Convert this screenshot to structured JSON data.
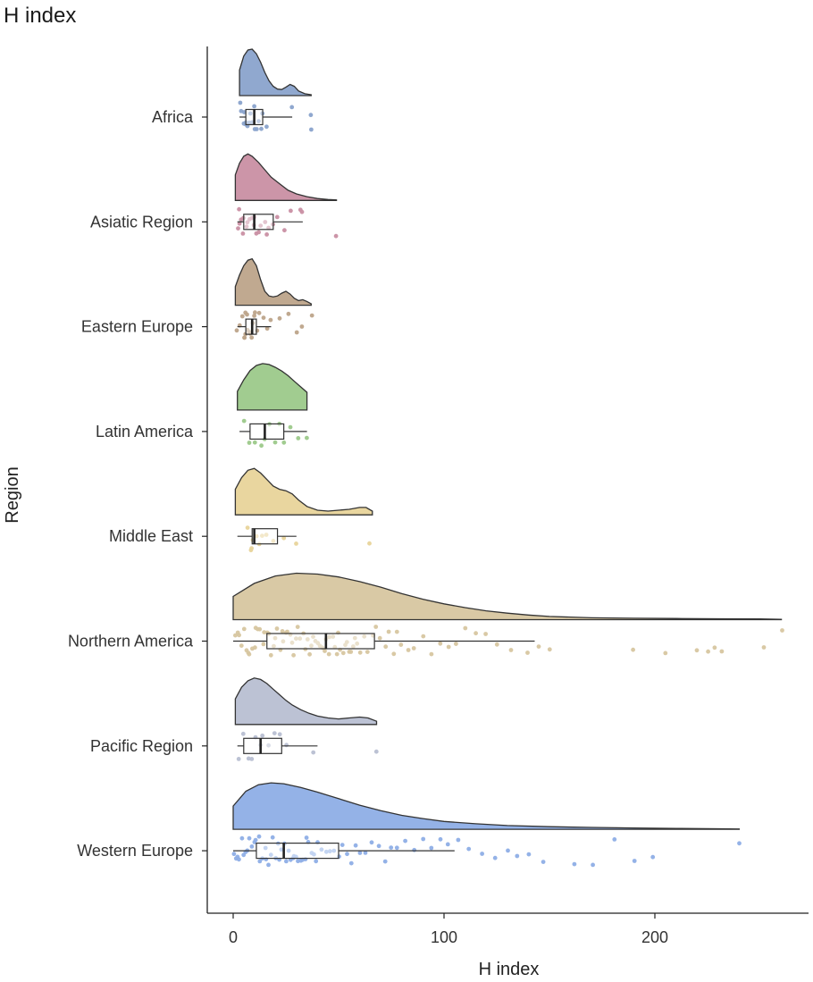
{
  "chart_data": {
    "type": "raincloud",
    "title": "H index",
    "xlabel": "H index",
    "ylabel": "Region",
    "xlim": [
      -12,
      273
    ],
    "xticks": [
      0,
      100,
      200
    ],
    "grid": false,
    "legend": "none",
    "series": [
      {
        "name": "Africa",
        "color": "#8aa3cc",
        "box": {
          "min": 3,
          "q1": 6,
          "median": 10,
          "q3": 14,
          "max": 28
        },
        "density_max": 37,
        "density": [
          [
            3,
            0.55
          ],
          [
            5,
            0.85
          ],
          [
            7,
            0.98
          ],
          [
            9,
            1.0
          ],
          [
            11,
            0.9
          ],
          [
            13,
            0.72
          ],
          [
            15,
            0.5
          ],
          [
            17,
            0.32
          ],
          [
            19,
            0.2
          ],
          [
            21,
            0.14
          ],
          [
            23,
            0.13
          ],
          [
            25,
            0.18
          ],
          [
            27,
            0.24
          ],
          [
            29,
            0.2
          ],
          [
            31,
            0.1
          ],
          [
            34,
            0.04
          ],
          [
            37,
            0.02
          ]
        ],
        "points": [
          3,
          4,
          5,
          5,
          6,
          6,
          7,
          8,
          8,
          9,
          10,
          10,
          11,
          12,
          13,
          14,
          16,
          28,
          37,
          37
        ]
      },
      {
        "name": "Asiatic Region",
        "color": "#c98fa3",
        "box": {
          "min": 2,
          "q1": 5,
          "median": 10,
          "q3": 19,
          "max": 33
        },
        "density_max": 49,
        "density": [
          [
            1,
            0.55
          ],
          [
            3,
            0.8
          ],
          [
            5,
            0.95
          ],
          [
            7,
            1.0
          ],
          [
            9,
            0.95
          ],
          [
            12,
            0.82
          ],
          [
            15,
            0.66
          ],
          [
            18,
            0.5
          ],
          [
            22,
            0.36
          ],
          [
            26,
            0.22
          ],
          [
            30,
            0.14
          ],
          [
            35,
            0.08
          ],
          [
            40,
            0.04
          ],
          [
            45,
            0.02
          ],
          [
            49,
            0.01
          ]
        ],
        "points": [
          2,
          3,
          3,
          4,
          5,
          5,
          6,
          7,
          8,
          9,
          10,
          10,
          11,
          12,
          13,
          15,
          16,
          17,
          19,
          21,
          24,
          27,
          32,
          33,
          49
        ]
      },
      {
        "name": "Eastern Europe",
        "color": "#bda48a",
        "box": {
          "min": 2,
          "q1": 6,
          "median": 9,
          "q3": 11,
          "max": 18
        },
        "density_max": 37,
        "density": [
          [
            1,
            0.4
          ],
          [
            3,
            0.65
          ],
          [
            5,
            0.85
          ],
          [
            7,
            0.97
          ],
          [
            9,
            1.0
          ],
          [
            11,
            0.85
          ],
          [
            13,
            0.55
          ],
          [
            15,
            0.3
          ],
          [
            17,
            0.2
          ],
          [
            19,
            0.18
          ],
          [
            21,
            0.2
          ],
          [
            23,
            0.26
          ],
          [
            25,
            0.3
          ],
          [
            27,
            0.24
          ],
          [
            29,
            0.15
          ],
          [
            31,
            0.1
          ],
          [
            33,
            0.12
          ],
          [
            35,
            0.08
          ],
          [
            37,
            0.03
          ]
        ],
        "points": [
          2,
          3,
          4,
          5,
          5,
          6,
          6,
          7,
          7,
          8,
          8,
          9,
          9,
          10,
          10,
          11,
          12,
          14,
          16,
          18,
          22,
          26,
          30,
          33,
          37
        ]
      },
      {
        "name": "Latin America",
        "color": "#9cc98a",
        "box": {
          "min": 3,
          "q1": 8,
          "median": 15,
          "q3": 24,
          "max": 35
        },
        "density_max": 35,
        "density": [
          [
            2,
            0.4
          ],
          [
            5,
            0.65
          ],
          [
            8,
            0.85
          ],
          [
            11,
            0.96
          ],
          [
            14,
            1.0
          ],
          [
            17,
            0.98
          ],
          [
            20,
            0.92
          ],
          [
            23,
            0.84
          ],
          [
            26,
            0.74
          ],
          [
            29,
            0.62
          ],
          [
            32,
            0.5
          ],
          [
            35,
            0.38
          ]
        ],
        "points": [
          5,
          8,
          10,
          13,
          15,
          17,
          20,
          22,
          24,
          27,
          31,
          35
        ]
      },
      {
        "name": "Middle East",
        "color": "#e8d49a",
        "box": {
          "min": 2,
          "q1": 9,
          "median": 10,
          "q3": 21,
          "max": 30
        },
        "density_max": 66,
        "density": [
          [
            1,
            0.55
          ],
          [
            4,
            0.8
          ],
          [
            7,
            0.96
          ],
          [
            10,
            1.0
          ],
          [
            13,
            0.9
          ],
          [
            16,
            0.76
          ],
          [
            19,
            0.62
          ],
          [
            22,
            0.55
          ],
          [
            25,
            0.52
          ],
          [
            28,
            0.45
          ],
          [
            31,
            0.32
          ],
          [
            35,
            0.18
          ],
          [
            40,
            0.1
          ],
          [
            45,
            0.08
          ],
          [
            50,
            0.1
          ],
          [
            55,
            0.12
          ],
          [
            60,
            0.16
          ],
          [
            63,
            0.16
          ],
          [
            66,
            0.08
          ]
        ],
        "points": [
          7,
          8,
          9,
          9,
          10,
          11,
          12,
          14,
          16,
          19,
          24,
          30,
          65
        ]
      },
      {
        "name": "Northern America",
        "color": "#d7c6a0",
        "box": {
          "min": 0,
          "q1": 16,
          "median": 44,
          "q3": 67,
          "max": 143
        },
        "density_max": 260,
        "density": [
          [
            0,
            0.5
          ],
          [
            10,
            0.78
          ],
          [
            20,
            0.94
          ],
          [
            30,
            1.0
          ],
          [
            40,
            0.98
          ],
          [
            50,
            0.92
          ],
          [
            60,
            0.82
          ],
          [
            70,
            0.7
          ],
          [
            80,
            0.56
          ],
          [
            90,
            0.44
          ],
          [
            100,
            0.34
          ],
          [
            110,
            0.26
          ],
          [
            120,
            0.19
          ],
          [
            130,
            0.14
          ],
          [
            140,
            0.1
          ],
          [
            150,
            0.07
          ],
          [
            170,
            0.04
          ],
          [
            190,
            0.03
          ],
          [
            210,
            0.025
          ],
          [
            230,
            0.02
          ],
          [
            250,
            0.015
          ],
          [
            260,
            0.008
          ]
        ],
        "points": [
          1,
          2,
          3,
          4,
          5,
          6,
          7,
          8,
          9,
          10,
          11,
          12,
          13,
          14,
          15,
          16,
          17,
          18,
          19,
          20,
          21,
          22,
          23,
          24,
          25,
          26,
          27,
          28,
          29,
          30,
          31,
          32,
          33,
          34,
          35,
          36,
          37,
          38,
          39,
          40,
          41,
          42,
          43,
          44,
          45,
          46,
          47,
          48,
          49,
          50,
          51,
          52,
          53,
          54,
          55,
          56,
          57,
          58,
          59,
          60,
          62,
          64,
          66,
          68,
          70,
          72,
          74,
          76,
          78,
          80,
          83,
          86,
          90,
          94,
          98,
          102,
          106,
          110,
          115,
          120,
          125,
          132,
          140,
          145,
          150,
          190,
          205,
          220,
          225,
          228,
          232,
          252,
          260
        ]
      },
      {
        "name": "Pacific Region",
        "color": "#b8bfd2",
        "box": {
          "min": 2,
          "q1": 5,
          "median": 13,
          "q3": 23,
          "max": 40
        },
        "density_max": 68,
        "density": [
          [
            1,
            0.55
          ],
          [
            4,
            0.8
          ],
          [
            7,
            0.94
          ],
          [
            10,
            1.0
          ],
          [
            13,
            0.97
          ],
          [
            16,
            0.88
          ],
          [
            19,
            0.76
          ],
          [
            22,
            0.64
          ],
          [
            25,
            0.52
          ],
          [
            28,
            0.42
          ],
          [
            32,
            0.32
          ],
          [
            36,
            0.24
          ],
          [
            40,
            0.18
          ],
          [
            45,
            0.14
          ],
          [
            50,
            0.12
          ],
          [
            55,
            0.14
          ],
          [
            60,
            0.16
          ],
          [
            64,
            0.14
          ],
          [
            68,
            0.07
          ]
        ],
        "points": [
          3,
          5,
          7,
          9,
          11,
          13,
          14,
          17,
          20,
          22,
          25,
          38,
          68
        ]
      },
      {
        "name": "Western Europe",
        "color": "#8eaee6",
        "box": {
          "min": 0,
          "q1": 11,
          "median": 24,
          "q3": 50,
          "max": 105
        },
        "density_max": 240,
        "density": [
          [
            0,
            0.5
          ],
          [
            6,
            0.82
          ],
          [
            12,
            0.96
          ],
          [
            18,
            1.0
          ],
          [
            24,
            0.98
          ],
          [
            32,
            0.9
          ],
          [
            40,
            0.8
          ],
          [
            50,
            0.66
          ],
          [
            60,
            0.52
          ],
          [
            70,
            0.4
          ],
          [
            80,
            0.3
          ],
          [
            90,
            0.23
          ],
          [
            100,
            0.17
          ],
          [
            115,
            0.12
          ],
          [
            130,
            0.08
          ],
          [
            150,
            0.055
          ],
          [
            170,
            0.04
          ],
          [
            190,
            0.028
          ],
          [
            210,
            0.02
          ],
          [
            230,
            0.012
          ],
          [
            240,
            0.006
          ]
        ],
        "points": [
          0,
          1,
          2,
          3,
          4,
          5,
          6,
          7,
          8,
          9,
          10,
          11,
          12,
          13,
          14,
          15,
          16,
          17,
          18,
          19,
          20,
          21,
          22,
          23,
          24,
          25,
          26,
          27,
          28,
          29,
          30,
          31,
          32,
          33,
          34,
          35,
          36,
          37,
          38,
          39,
          40,
          42,
          44,
          46,
          48,
          50,
          52,
          54,
          56,
          58,
          60,
          63,
          66,
          69,
          72,
          75,
          78,
          82,
          86,
          90,
          94,
          98,
          102,
          107,
          112,
          118,
          124,
          130,
          135,
          140,
          147,
          162,
          171,
          181,
          190,
          199,
          240
        ]
      }
    ]
  }
}
